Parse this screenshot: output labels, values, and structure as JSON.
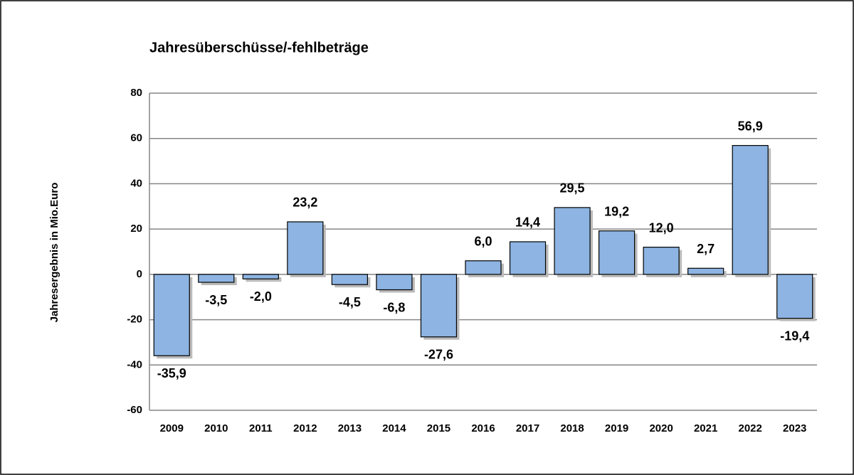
{
  "chart_data": {
    "type": "bar",
    "title": "Jahresüberschüsse/-fehlbeträge",
    "y_axis_label": "Jahresergebnis in Mio.Euro",
    "categories": [
      "2009",
      "2010",
      "2011",
      "2012",
      "2013",
      "2014",
      "2015",
      "2016",
      "2017",
      "2018",
      "2019",
      "2020",
      "2021",
      "2022",
      "2023"
    ],
    "values": [
      -35.9,
      -3.5,
      -2.0,
      23.2,
      -4.5,
      -6.8,
      -27.6,
      6.0,
      14.4,
      29.5,
      19.2,
      12.0,
      2.7,
      56.9,
      -19.4
    ],
    "value_labels": [
      "-35,9",
      "-3,5",
      "-2,0",
      "23,2",
      "-4,5",
      "-6,8",
      "-27,6",
      "6,0",
      "14,4",
      "29,5",
      "19,2",
      "12,0",
      "2,7",
      "56,9",
      "-19,4"
    ],
    "color": "#8db4e2",
    "ylim": [
      -60,
      80
    ],
    "yticks": [
      -60,
      -40,
      -20,
      0,
      20,
      40,
      60,
      80
    ],
    "grid": true
  }
}
